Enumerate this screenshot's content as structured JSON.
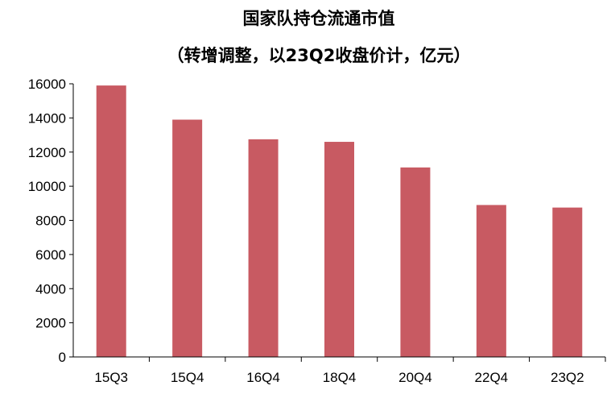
{
  "chart_data": {
    "type": "bar",
    "title": "国家队持仓流通市值",
    "subtitle": "（转增调整，以23Q2收盘价计，亿元）",
    "categories": [
      "15Q3",
      "15Q4",
      "16Q4",
      "18Q4",
      "20Q4",
      "22Q4",
      "23Q2"
    ],
    "values": [
      15900,
      13900,
      12750,
      12600,
      11100,
      8900,
      8750
    ],
    "xlabel": "",
    "ylabel": "",
    "ylim": [
      0,
      16000
    ],
    "yticks": [
      "0",
      "2000",
      "4000",
      "6000",
      "8000",
      "10000",
      "12000",
      "14000",
      "16000"
    ],
    "bar_color": "#C85A62",
    "grid": false,
    "legend": "none"
  }
}
